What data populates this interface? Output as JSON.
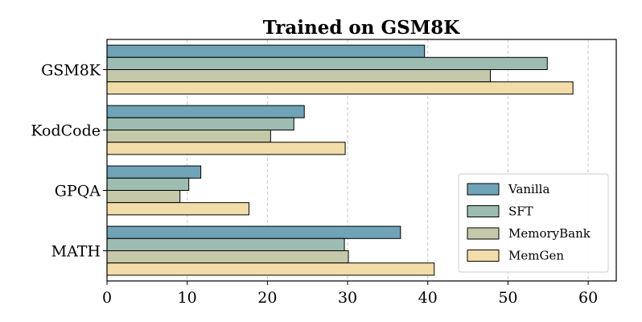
{
  "chart_data": {
    "type": "bar",
    "orientation": "horizontal",
    "title": "Trained on GSM8K",
    "xlabel": "",
    "ylabel": "",
    "categories": [
      "GSM8K",
      "KodCode",
      "GPQA",
      "MATH"
    ],
    "series": [
      {
        "name": "Vanilla",
        "color": "#6fa3b7",
        "values": [
          39.6,
          24.6,
          11.7,
          36.6
        ]
      },
      {
        "name": "SFT",
        "color": "#9dbdb2",
        "values": [
          54.9,
          23.3,
          10.2,
          29.6
        ]
      },
      {
        "name": "MemoryBank",
        "color": "#c5c8a9",
        "values": [
          47.8,
          20.4,
          9.1,
          30.1
        ]
      },
      {
        "name": "MemGen",
        "color": "#f2dda8",
        "values": [
          58.1,
          29.7,
          17.7,
          40.8
        ]
      }
    ],
    "xlim": [
      0,
      63.5
    ],
    "xticks": [
      0,
      10,
      20,
      30,
      40,
      50,
      60
    ],
    "grid": {
      "x": true,
      "y": false
    },
    "legend_position": "lower-right"
  }
}
